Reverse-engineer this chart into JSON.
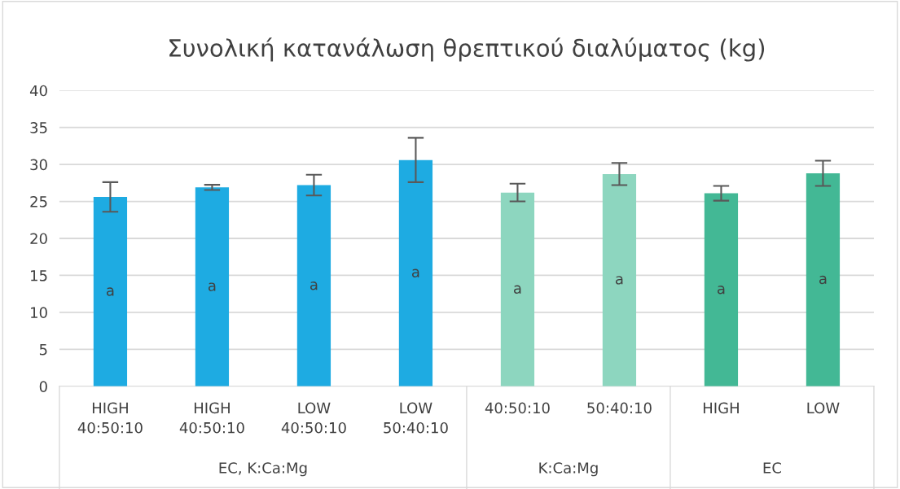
{
  "chart_data": {
    "type": "bar",
    "title": "Συνολική κατανάλωση θρεπτικού διαλύματος (kg)",
    "categories": [
      "HIGH\n40:50:10",
      "HIGH\n40:50:10",
      "LOW\n40:50:10",
      "LOW\n50:40:10",
      "40:50:10",
      "50:40:10",
      "HIGH",
      "LOW"
    ],
    "values": [
      25.6,
      26.9,
      27.2,
      30.6,
      26.2,
      28.7,
      26.1,
      28.8
    ],
    "errors": [
      2.0,
      0.35,
      1.4,
      3.0,
      1.2,
      1.5,
      1.0,
      1.7
    ],
    "colors": [
      "#1eabe2",
      "#1eabe2",
      "#1eabe2",
      "#1eabe2",
      "#8dd6bf",
      "#8dd6bf",
      "#43b895",
      "#43b895"
    ],
    "value_labels": [
      "a",
      "a",
      "a",
      "a",
      "a",
      "a",
      "a",
      "a"
    ],
    "annotations": [
      "EC, K:Ca:Mg",
      "K:Ca:Mg",
      "EC"
    ],
    "ylim": [
      0,
      40
    ],
    "yticks": [
      0,
      5,
      10,
      15,
      20,
      25,
      30,
      35,
      40
    ],
    "grid": "y",
    "legend": false
  }
}
